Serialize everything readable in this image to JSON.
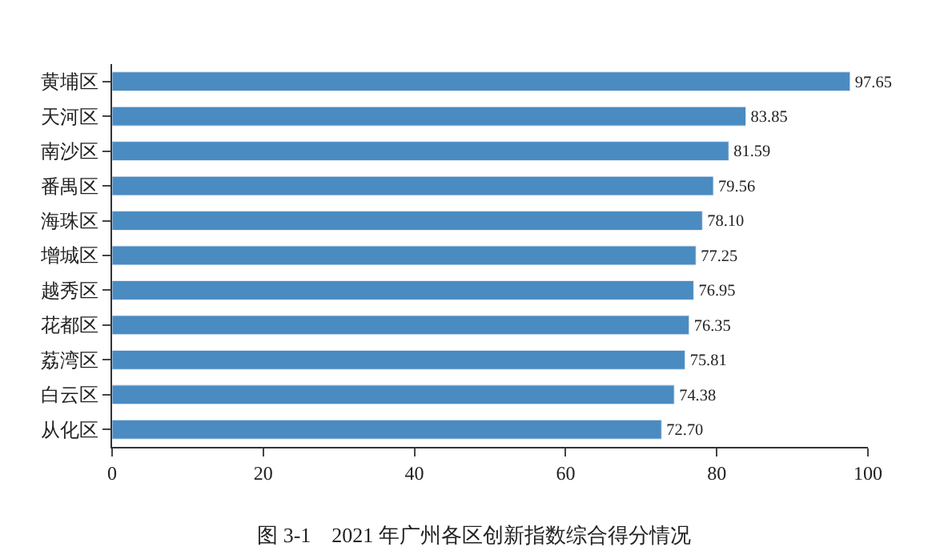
{
  "chart_data": {
    "type": "bar",
    "orientation": "horizontal",
    "title": "图 3-1　2021 年广州各区创新指数综合得分情况",
    "categories": [
      "黄埔区",
      "天河区",
      "南沙区",
      "番禺区",
      "海珠区",
      "增城区",
      "越秀区",
      "花都区",
      "荔湾区",
      "白云区",
      "从化区"
    ],
    "values": [
      97.65,
      83.85,
      81.59,
      79.56,
      78.1,
      77.25,
      76.95,
      76.35,
      75.81,
      74.38,
      72.7
    ],
    "value_labels": [
      "97.65",
      "83.85",
      "81.59",
      "79.56",
      "78.10",
      "77.25",
      "76.95",
      "76.35",
      "75.81",
      "74.38",
      "72.70"
    ],
    "color": "#4a8bc2",
    "xlim": [
      0,
      100
    ],
    "xticks": [
      0,
      20,
      40,
      60,
      80,
      100
    ]
  }
}
